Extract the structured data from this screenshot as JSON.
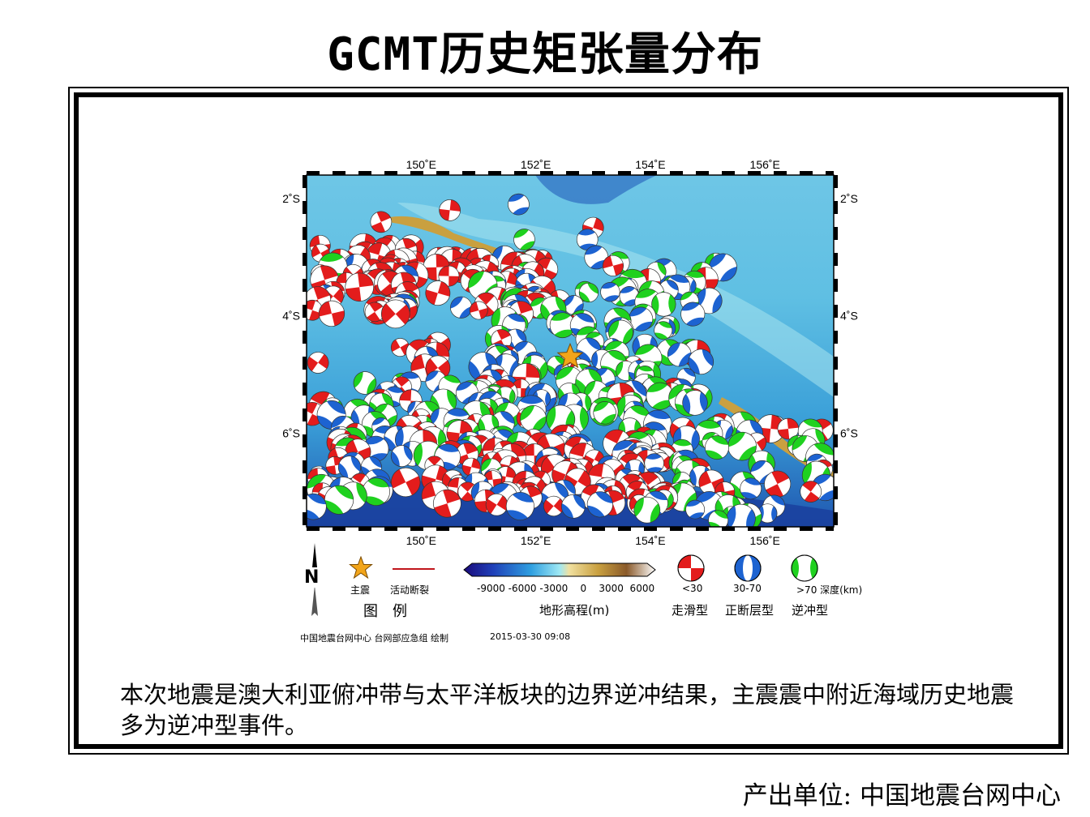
{
  "title": "GCMT历史矩张量分布",
  "map": {
    "top_lon_labels": [
      "150˚E",
      "152˚E",
      "154˚E",
      "156˚E"
    ],
    "bottom_lon_labels": [
      "150˚E",
      "152˚E",
      "154˚E",
      "156˚E"
    ],
    "left_lat_labels": [
      "2˚S",
      "4˚S",
      "6˚S"
    ],
    "right_lat_labels": [
      "2˚S",
      "4˚S",
      "6˚S"
    ],
    "lon_range": [
      148.0,
      157.2
    ],
    "lat_range": [
      -1.6,
      -7.6
    ],
    "lon_ticks": [
      150,
      152,
      154,
      156
    ],
    "lat_ticks": [
      -2,
      -4,
      -6
    ],
    "mainshock": {
      "lon": 152.6,
      "lat": -4.7
    },
    "colors": {
      "ocean_deep": "#1f4fa8",
      "ocean_mid": "#3ea6d8",
      "ocean_shallow": "#8fd8ec",
      "land": "#c9a040",
      "strike_slip": "#e31c1c",
      "normal": "#1d63d1",
      "thrust": "#1fd11f",
      "star": "#f2a51a",
      "fault": "#c0161c"
    }
  },
  "legend": {
    "north_label": "N",
    "mainshock_label": "主震",
    "fault_label": "活动断裂",
    "legend_title": "图　例",
    "colorbar_ticks": "-9000 -6000 -3000    0    3000  6000",
    "colorbar_title": "地形高程(m)",
    "depth_1": "<30",
    "depth_2": "30-70",
    "depth_3": ">70 深度(km)",
    "type_1": "走滑型",
    "type_2": "正断层型",
    "type_3": "逆冲型",
    "maker": "中国地震台网中心 台网部应急组 绘制",
    "date": "2015-03-30 09:08"
  },
  "caption": "本次地震是澳大利亚俯冲带与太平洋板块的边界逆冲结果，主震震中附近海域历史地震多为逆冲型事件。",
  "credit": "产出单位: 中国地震台网中心"
}
